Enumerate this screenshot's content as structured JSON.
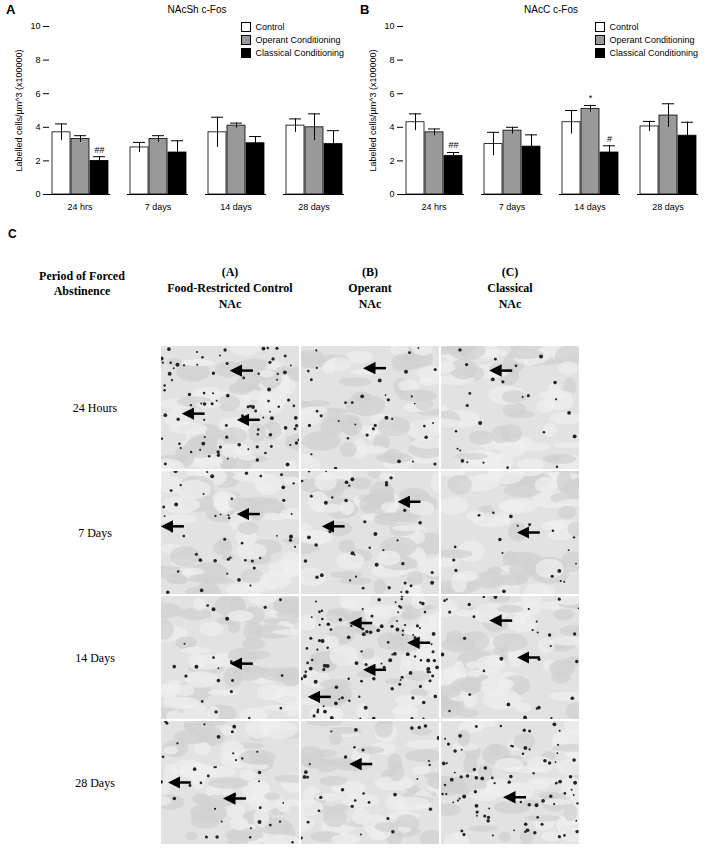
{
  "chart_data": [
    {
      "type": "bar",
      "panel_label": "A",
      "title": "NAcSh c-Fos",
      "ylabel": "Labelled cells/µm^3 (x100000)",
      "categories": [
        "24 hrs",
        "7 days",
        "14 days",
        "28 days"
      ],
      "ylim": [
        0,
        10
      ],
      "yticks": [
        0,
        2,
        4,
        6,
        8,
        10
      ],
      "legend": "top-right",
      "series": [
        {
          "name": "Control",
          "color": "#ffffff",
          "values": [
            3.7,
            2.8,
            3.7,
            4.1
          ],
          "errors": [
            0.5,
            0.3,
            0.9,
            0.4
          ]
        },
        {
          "name": "Operant Conditioning",
          "color": "#999999",
          "values": [
            3.3,
            3.3,
            4.1,
            4.0
          ],
          "errors": [
            0.2,
            0.2,
            0.15,
            0.8
          ]
        },
        {
          "name": "Classical Conditioning",
          "color": "#000000",
          "values": [
            2.0,
            2.5,
            3.05,
            3.0
          ],
          "errors": [
            0.25,
            0.7,
            0.4,
            0.8
          ]
        }
      ],
      "annotations": [
        {
          "text": "##",
          "category": "24 hrs",
          "series": "Classical Conditioning"
        }
      ]
    },
    {
      "type": "bar",
      "panel_label": "B",
      "title": "NAcC c-Fos",
      "ylabel": "Labelled cells/µm^3 (x100000)",
      "categories": [
        "24 hrs",
        "7 days",
        "14 days",
        "28 days"
      ],
      "ylim": [
        0,
        10
      ],
      "yticks": [
        0,
        2,
        4,
        6,
        8,
        10
      ],
      "legend": "top-right",
      "series": [
        {
          "name": "Control",
          "color": "#ffffff",
          "values": [
            4.3,
            3.0,
            4.3,
            4.05
          ],
          "errors": [
            0.5,
            0.7,
            0.7,
            0.3
          ]
        },
        {
          "name": "Operant Conditioning",
          "color": "#999999",
          "values": [
            3.7,
            3.8,
            5.1,
            4.7
          ],
          "errors": [
            0.2,
            0.2,
            0.2,
            0.7
          ]
        },
        {
          "name": "Classical Conditioning",
          "color": "#000000",
          "values": [
            2.3,
            2.85,
            2.5,
            3.5
          ],
          "errors": [
            0.2,
            0.7,
            0.4,
            0.8
          ]
        }
      ],
      "annotations": [
        {
          "text": "##",
          "category": "24 hrs",
          "series": "Classical Conditioning"
        },
        {
          "text": "*",
          "category": "14 days",
          "series": "Operant Conditioning"
        },
        {
          "text": "#",
          "category": "14 days",
          "series": "Classical Conditioning"
        }
      ]
    }
  ],
  "panel_c": {
    "panel_label": "C",
    "row_header": "Period of Forced Abstinence",
    "columns": [
      {
        "letter": "(A)",
        "name": "Food-Restricted Control",
        "region": "NAc"
      },
      {
        "letter": "(B)",
        "name": "Operant",
        "region": "NAc"
      },
      {
        "letter": "(C)",
        "name": "Classical",
        "region": "NAc"
      }
    ],
    "rows": [
      "24 Hours",
      "7 Days",
      "14 Days",
      "28 Days"
    ]
  }
}
